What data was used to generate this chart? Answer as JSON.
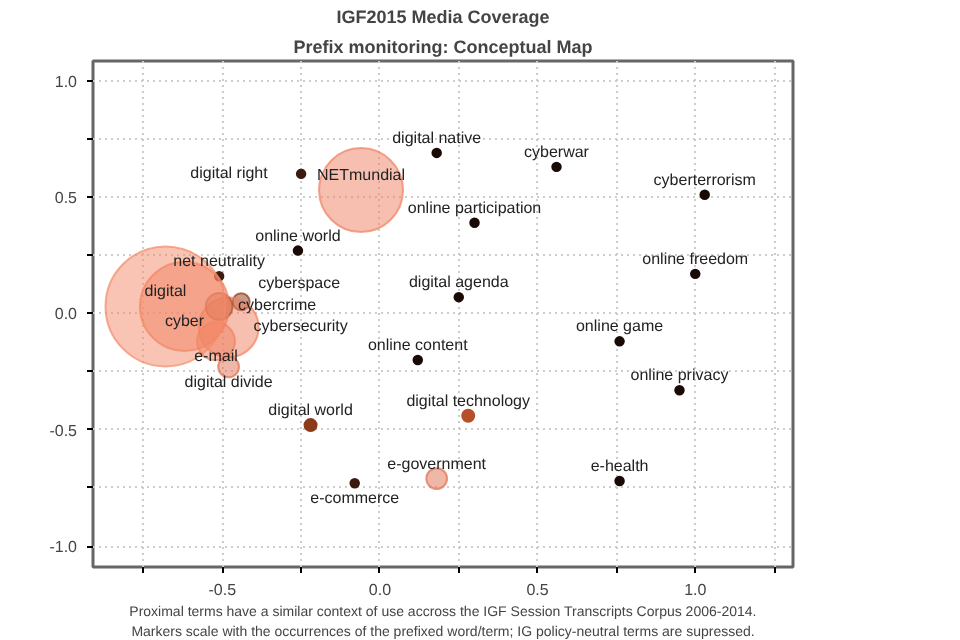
{
  "chart_data": {
    "type": "bubble",
    "title": "IGF2015 Media Coverage",
    "subtitle": "Prefix monitoring: Conceptual Map",
    "annotations": [
      "Proximal terms have a similar context of use accross the IGF Session Transcripts Corpus 2006-2014.",
      "Markers scale with the occurrences of the prefixed word/term; IG policy-neutral terms are supressed."
    ],
    "x": [
      -0.25,
      -0.06,
      -0.26,
      0.18,
      0.3,
      0.25,
      0.12,
      0.56,
      1.03,
      1.0,
      0.76,
      0.95,
      0.76,
      0.28,
      -0.22,
      -0.08,
      0.18,
      -0.48,
      -0.51,
      -0.44,
      -0.48,
      -0.52,
      -0.51,
      -0.62,
      -0.68
    ],
    "series": [
      {
        "values": [
          0.6,
          0.53,
          0.27,
          0.69,
          0.39,
          0.07,
          -0.2,
          0.63,
          0.51,
          0.17,
          -0.12,
          -0.33,
          -0.72,
          -0.44,
          -0.48,
          -0.73,
          -0.71,
          -0.23,
          0.16,
          0.05,
          -0.06,
          -0.12,
          0.03,
          0.03,
          0.03
        ],
        "sizes": [
          0.005,
          0.49,
          0.005,
          0.005,
          0.005,
          0.005,
          0.005,
          0.005,
          0.005,
          0.005,
          0.005,
          0.005,
          0.005,
          0.01,
          0.01,
          0.005,
          0.03,
          0.03,
          0.005,
          0.02,
          0.25,
          0.1,
          0.05,
          0.55,
          1
        ],
        "colors": [
          "#3b1a10",
          "#f08060",
          "#1a0a05",
          "#1a0a05",
          "#1a0a05",
          "#1a0a05",
          "#1a0a05",
          "#1a0a05",
          "#1a0a05",
          "#1a0a05",
          "#1a0a05",
          "#1a0a05",
          "#1a0a05",
          "#b5502a",
          "#8b3a1a",
          "#3b1a10",
          "#e07050",
          "#e07050",
          "#3b1a10",
          "#8b3a1a",
          "#f08060",
          "#f08060",
          "#b5502a",
          "#f08060",
          "#f48a68"
        ],
        "value_labels": [
          "digital right",
          "NETmundial",
          "online world",
          "digital native",
          "online participation",
          "digital agenda",
          "online content",
          "cyberwar",
          "cyberterrorism",
          "online freedom",
          "online game",
          "online privacy",
          "e-health",
          "digital technology",
          "digital world",
          "e-commerce",
          "e-government",
          "digital divide",
          "net neutrality",
          "cyberspace",
          "cybersecurity",
          "e-mail",
          "cybercrime",
          "cyber",
          "digital"
        ]
      }
    ],
    "xlim": [
      -0.91,
      1.31
    ],
    "ylim": [
      -1.09,
      1.085
    ],
    "xticks": [
      {
        "value": -0.75,
        "label": null
      },
      {
        "value": -0.5,
        "label": "-0.5"
      },
      {
        "value": -0.25,
        "label": null
      },
      {
        "value": 0,
        "label": "0.0"
      },
      {
        "value": 0.25,
        "label": null
      },
      {
        "value": 0.5,
        "label": "0.5"
      },
      {
        "value": 0.75,
        "label": null
      },
      {
        "value": 1,
        "label": "1.0"
      },
      {
        "value": 1.25,
        "label": null
      }
    ],
    "yticks": [
      {
        "value": -1,
        "label": "-1.0"
      },
      {
        "value": -0.75,
        "label": null
      },
      {
        "value": -0.5,
        "label": "-0.5"
      },
      {
        "value": -0.25,
        "label": null
      },
      {
        "value": 0,
        "label": "0.0"
      },
      {
        "value": 0.25,
        "label": null
      },
      {
        "value": 0.5,
        "label": "0.5"
      },
      {
        "value": 0.75,
        "label": null
      },
      {
        "value": 1,
        "label": "1.0"
      }
    ],
    "grid": true,
    "marker": "circle"
  }
}
